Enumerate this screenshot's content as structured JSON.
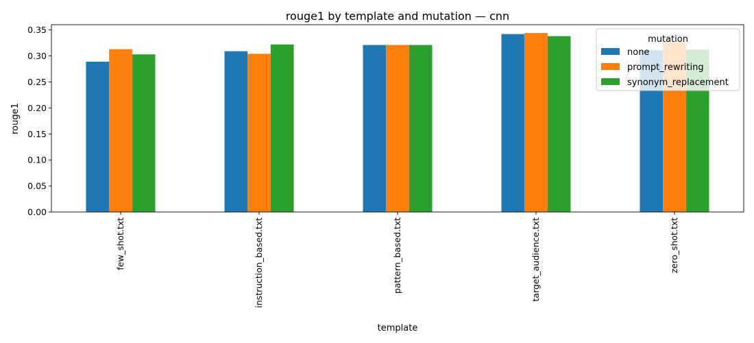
{
  "chart_data": {
    "type": "bar",
    "title": "rouge1 by template and mutation — cnn",
    "xlabel": "template",
    "ylabel": "rouge1",
    "categories": [
      "few_shot.txt",
      "instruction_based.txt",
      "pattern_based.txt",
      "target_audience.txt",
      "zero_shot.txt"
    ],
    "series": [
      {
        "name": "none",
        "color": "#1f77b4",
        "values": [
          0.289,
          0.309,
          0.321,
          0.342,
          0.311
        ]
      },
      {
        "name": "prompt_rewriting",
        "color": "#ff7f0e",
        "values": [
          0.313,
          0.304,
          0.321,
          0.344,
          0.326
        ]
      },
      {
        "name": "synonym_replacement",
        "color": "#2ca02c",
        "values": [
          0.303,
          0.322,
          0.321,
          0.338,
          0.312
        ]
      }
    ],
    "ylim": [
      0,
      0.36
    ],
    "yticks": [
      "0.00",
      "0.05",
      "0.10",
      "0.15",
      "0.20",
      "0.25",
      "0.30",
      "0.35"
    ],
    "legend": {
      "title": "mutation",
      "placement": "top-right",
      "semi_transparent": true
    },
    "grid": false
  }
}
